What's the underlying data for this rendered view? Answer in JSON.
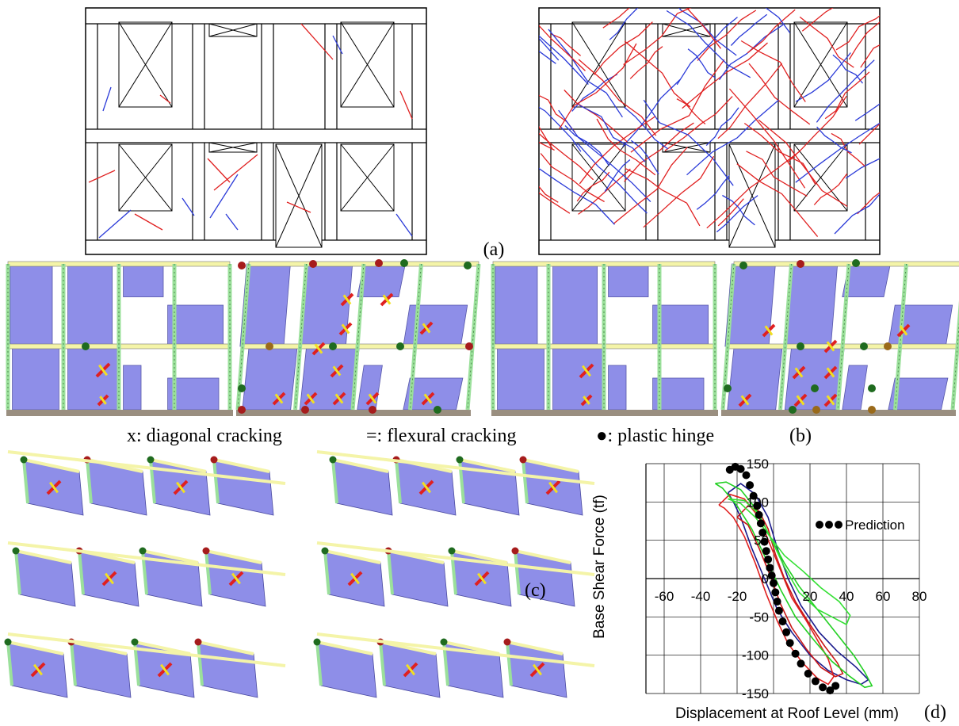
{
  "panels": {
    "a": "(a)",
    "b": "(b)",
    "c": "(c)",
    "d": "(d)"
  },
  "legend_b": {
    "diagonal": "x: diagonal cracking",
    "flexural": "=: flexural cracking",
    "hinge": "●: plastic hinge"
  },
  "colors": {
    "panel_fill": "#8e8ee8",
    "column": "#9be09b",
    "beam": "#f4f4a8",
    "hinge_red": "#a61c1c",
    "hinge_green": "#1f6b1f",
    "hinge_brown": "#9a6a1a",
    "crack_red": "#e02020",
    "crack_blue": "#2a3ad8",
    "mark_yellow": "#f2e022"
  },
  "chart_data": {
    "type": "line",
    "title": "",
    "xlabel": "Displacement at Roof Level (mm)",
    "ylabel": "Base Shear Force (tf)",
    "xlim": [
      -70,
      80
    ],
    "ylim": [
      -150,
      150
    ],
    "xticks": [
      -60,
      -40,
      -20,
      0,
      20,
      40,
      60,
      80
    ],
    "yticks": [
      -150,
      -100,
      -50,
      0,
      50,
      100,
      150
    ],
    "grid": true,
    "legend": "right",
    "series": [
      {
        "name": "Prediction",
        "style": "dots",
        "color": "#000000",
        "x": [
          -24,
          -21,
          -18,
          -15,
          -13,
          -11,
          -9,
          -8,
          -7,
          -6,
          -5,
          -4,
          -3,
          -2,
          -1,
          0,
          1,
          2,
          3,
          5,
          7,
          9,
          12,
          15,
          19,
          23,
          27,
          31,
          34
        ],
        "y": [
          142,
          146,
          143,
          135,
          122,
          108,
          95,
          83,
          72,
          60,
          48,
          36,
          25,
          14,
          4,
          -6,
          -18,
          -30,
          -42,
          -56,
          -70,
          -84,
          -98,
          -111,
          -124,
          -134,
          -142,
          -146,
          -140
        ]
      },
      {
        "name": "",
        "color": "#1a1a8c",
        "x": [
          -25,
          -18,
          -10,
          -3,
          2,
          8,
          15,
          25,
          35,
          45,
          52,
          48,
          40,
          30,
          20,
          10,
          2,
          -5,
          -12,
          -18,
          -22,
          -25
        ],
        "y": [
          112,
          124,
          110,
          80,
          40,
          0,
          -35,
          -70,
          -95,
          -115,
          -132,
          -138,
          -132,
          -120,
          -100,
          -70,
          -40,
          0,
          40,
          80,
          100,
          112
        ]
      },
      {
        "name": "",
        "color": "#e02020",
        "x": [
          -30,
          -24,
          -16,
          -8,
          -2,
          4,
          10,
          18,
          24,
          30,
          33,
          30,
          24,
          16,
          8,
          2,
          -4,
          -10,
          -16,
          -22,
          -27,
          -30
        ],
        "y": [
          96,
          110,
          104,
          80,
          45,
          10,
          -25,
          -55,
          -80,
          -105,
          -128,
          -138,
          -130,
          -110,
          -85,
          -55,
          -20,
          20,
          55,
          80,
          92,
          96
        ]
      },
      {
        "name": "",
        "color": "#c81818",
        "x": [
          -20,
          -14,
          -8,
          -3,
          1,
          6,
          12,
          20,
          28,
          35,
          38,
          34,
          26,
          18,
          10,
          4,
          -2,
          -8,
          -14,
          -20
        ],
        "y": [
          80,
          95,
          88,
          65,
          32,
          0,
          -30,
          -60,
          -88,
          -110,
          -124,
          -128,
          -116,
          -92,
          -64,
          -34,
          5,
          40,
          70,
          80
        ]
      },
      {
        "name": "",
        "color": "#22d022",
        "x": [
          -32,
          -26,
          -18,
          -10,
          -2,
          6,
          14,
          24,
          34,
          44,
          50,
          54,
          50,
          42,
          32,
          22,
          12,
          4,
          -4,
          -12,
          -20,
          -28,
          -32
        ],
        "y": [
          124,
          126,
          116,
          92,
          55,
          20,
          -10,
          -40,
          -70,
          -100,
          -122,
          -140,
          -142,
          -128,
          -108,
          -80,
          -50,
          -15,
          25,
          65,
          95,
          118,
          124
        ]
      },
      {
        "name": "",
        "color": "#34e034",
        "x": [
          -25,
          -16,
          -8,
          -1,
          6,
          14,
          24,
          32,
          40,
          42,
          36,
          26,
          16,
          6,
          -2,
          -10,
          -18,
          -25
        ],
        "y": [
          104,
          102,
          84,
          50,
          15,
          -18,
          -40,
          -50,
          -60,
          -48,
          -30,
          -12,
          10,
          30,
          55,
          80,
          98,
          104
        ]
      }
    ]
  }
}
